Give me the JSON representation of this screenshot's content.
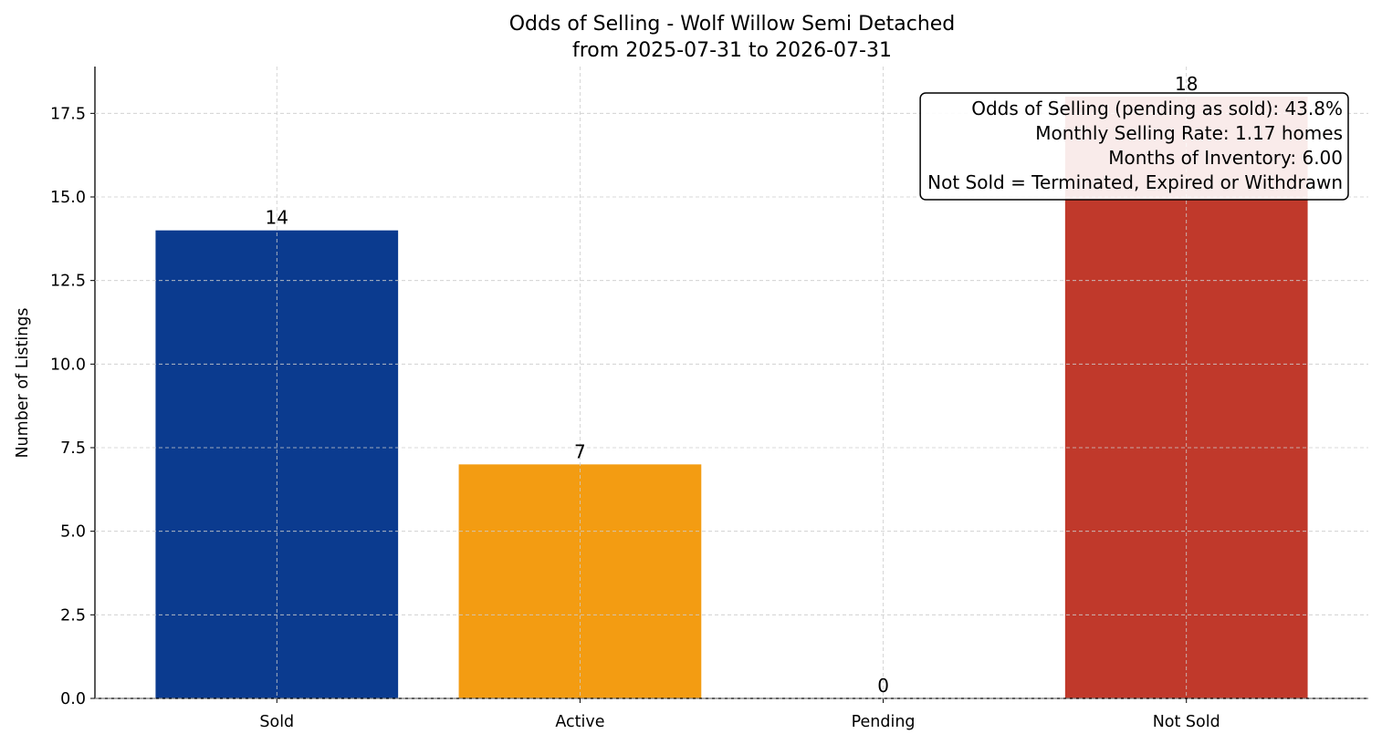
{
  "chart_data": {
    "type": "bar",
    "title": "Odds of Selling - Wolf Willow Semi Detached",
    "subtitle": "from 2025-07-31 to 2026-07-31",
    "xlabel": "",
    "ylabel": "Number of Listings",
    "categories": [
      "Sold",
      "Active",
      "Pending",
      "Not Sold"
    ],
    "values": [
      14,
      7,
      0,
      18
    ],
    "data_labels": [
      "14",
      "7",
      "0",
      "18"
    ],
    "colors": [
      "#0b3b8f",
      "#f39c12",
      "#2e8b57",
      "#c0392b"
    ],
    "ylim": [
      0,
      18.9
    ],
    "yticks": [
      0,
      2.5,
      5,
      7.5,
      10,
      12.5,
      15,
      17.5
    ],
    "ytick_labels": [
      "0.0",
      "2.5",
      "5.0",
      "7.5",
      "10.0",
      "12.5",
      "15.0",
      "17.5"
    ],
    "grid": true,
    "annotation": {
      "lines": [
        "Odds of Selling (pending as sold): 43.8%",
        "Monthly Selling Rate: 1.17 homes",
        "Months of Inventory: 6.00",
        "Not Sold = Terminated, Expired or Withdrawn"
      ],
      "placement": "top-right"
    }
  }
}
